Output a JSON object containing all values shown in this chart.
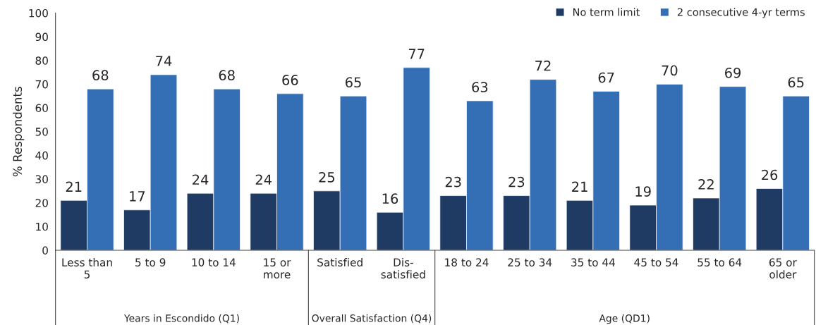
{
  "chart_data": {
    "type": "bar",
    "ylabel": "% Respondents",
    "categories": [
      "Less than\n5",
      "5 to 9",
      "10 to 14",
      "15 or\nmore",
      "Satisfied",
      "Dis-\nsatisfied",
      "18 to 24",
      "25 to 34",
      "35 to 44",
      "45 to 54",
      "55 to 64",
      "65 or\nolder"
    ],
    "series": [
      {
        "name": "No term limit",
        "color": "#1f3b64",
        "values": [
          21,
          17,
          24,
          24,
          25,
          16,
          23,
          23,
          21,
          19,
          22,
          26
        ]
      },
      {
        "name": "2 consecutive 4-yr terms",
        "color": "#346fb6",
        "values": [
          68,
          74,
          68,
          66,
          65,
          77,
          63,
          72,
          67,
          70,
          69,
          65
        ]
      }
    ],
    "annotations": [
      "Years in Escondido (Q1)",
      "Overall Satisfaction (Q4)",
      "Age (QD1)"
    ],
    "ylim": [
      0,
      100
    ],
    "yticks": [
      0,
      10,
      20,
      30,
      40,
      50,
      60,
      70,
      80,
      90,
      100
    ],
    "data_labels": true,
    "grid": false,
    "legend": "top right"
  }
}
